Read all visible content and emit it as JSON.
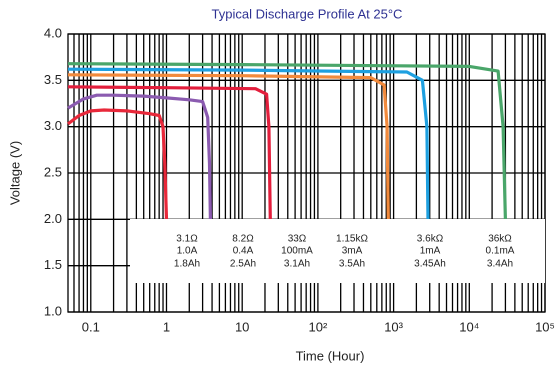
{
  "chart_data": {
    "type": "line",
    "title": "Typical Discharge Profile At 25°C",
    "xlabel": "Time (Hour)",
    "ylabel": "Voltage (V)",
    "xscale": "log",
    "xlim": [
      0.05,
      100000
    ],
    "xticks": [
      0.1,
      1,
      10,
      {
        "value": 100,
        "label": "10²"
      },
      {
        "value": 1000,
        "label": "10³"
      },
      {
        "value": 10000,
        "label": "10⁴"
      },
      {
        "value": 100000,
        "label": "10⁵"
      }
    ],
    "ylim": [
      1,
      4
    ],
    "yticks": [
      {
        "value": 1,
        "label": "1.0"
      },
      {
        "value": 1.5,
        "label": "1.5"
      },
      {
        "value": 2,
        "label": "2.0"
      },
      {
        "value": 2.5,
        "label": "2.5"
      },
      {
        "value": 3,
        "label": "3.0"
      },
      {
        "value": 3.5,
        "label": "3.5"
      },
      {
        "value": 4,
        "label": "4.0"
      }
    ],
    "grid": true,
    "series": [
      {
        "name": "3.1Ω",
        "current": "1.0A",
        "capacity": "1.8Ah",
        "color": "#e8283a",
        "x": [
          0.05,
          0.07,
          0.1,
          0.15,
          0.3,
          0.6,
          0.8,
          0.9,
          0.95,
          1.0
        ],
        "values": [
          3.03,
          3.12,
          3.17,
          3.18,
          3.17,
          3.14,
          3.12,
          3.0,
          2.6,
          2.0
        ]
      },
      {
        "name": "8.2Ω",
        "current": "0.4A",
        "capacity": "2.5Ah",
        "color": "#8b5bb0",
        "x": [
          0.05,
          0.08,
          0.12,
          0.2,
          0.5,
          1,
          2,
          3,
          3.5,
          3.7,
          3.8
        ],
        "values": [
          3.2,
          3.3,
          3.34,
          3.34,
          3.33,
          3.31,
          3.29,
          3.27,
          3.1,
          2.6,
          2.0
        ]
      },
      {
        "name": "33Ω",
        "current": "100mA",
        "capacity": "3.1Ah",
        "color": "#e31e3c",
        "x": [
          0.05,
          1,
          15,
          21,
          22.5,
          23.5
        ],
        "values": [
          3.43,
          3.42,
          3.41,
          3.35,
          3.0,
          2.0
        ]
      },
      {
        "name": "1.15kΩ",
        "current": "3mA",
        "capacity": "3.5Ah",
        "color": "#f28a3c",
        "x": [
          0.05,
          10,
          500,
          750,
          820,
          850
        ],
        "values": [
          3.56,
          3.55,
          3.53,
          3.45,
          3.0,
          2.0
        ]
      },
      {
        "name": "3.6kΩ",
        "current": "1mA",
        "capacity": "3.45Ah",
        "color": "#1ea0e0",
        "x": [
          0.05,
          10,
          1500,
          2400,
          2750,
          2850
        ],
        "values": [
          3.62,
          3.61,
          3.59,
          3.5,
          3.0,
          2.0
        ]
      },
      {
        "name": "36kΩ",
        "current": "0.1mA",
        "capacity": "3.4Ah",
        "color": "#4aa66a",
        "x": [
          0.05,
          10,
          10000,
          24000,
          28000,
          30000
        ],
        "values": [
          3.68,
          3.67,
          3.65,
          3.6,
          3.0,
          2.0
        ]
      }
    ]
  }
}
